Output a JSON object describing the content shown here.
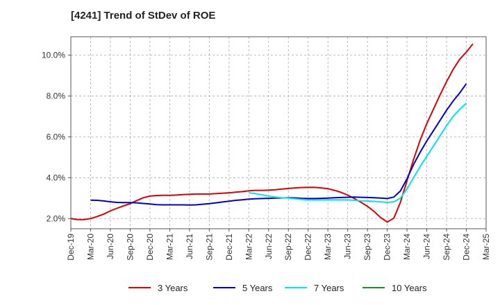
{
  "title": "[4241]  Trend of StDev of ROE",
  "chart_data": {
    "type": "line",
    "title": "[4241]  Trend of StDev of ROE",
    "xlabel": "",
    "ylabel": "",
    "x": [
      "Dec-19",
      "Mar-20",
      "Jun-20",
      "Sep-20",
      "Dec-20",
      "Mar-21",
      "Jun-21",
      "Sep-21",
      "Dec-21",
      "Mar-22",
      "Jun-22",
      "Sep-22",
      "Dec-22",
      "Mar-23",
      "Jun-23",
      "Sep-23",
      "Dec-23",
      "Mar-24",
      "Jun-24",
      "Sep-24",
      "Dec-24",
      "Mar-25"
    ],
    "ylim": [
      1.5,
      10.9
    ],
    "yticks": [
      2.0,
      4.0,
      6.0,
      8.0,
      10.0
    ],
    "ytick_labels": [
      "2.0%",
      "4.0%",
      "6.0%",
      "8.0%",
      "10.0%"
    ],
    "grid": true,
    "legend_position": "bottom",
    "series": [
      {
        "name": "3 Years",
        "color": "#dd0000",
        "points": [
          [
            "Dec-19",
            2.0
          ],
          [
            "Jan-20",
            1.95
          ],
          [
            "Feb-20",
            1.95
          ],
          [
            "Mar-20",
            2.0
          ],
          [
            "Apr-20",
            2.1
          ],
          [
            "May-20",
            2.22
          ],
          [
            "Jun-20",
            2.38
          ],
          [
            "Jul-20",
            2.5
          ],
          [
            "Aug-20",
            2.62
          ],
          [
            "Sep-20",
            2.73
          ],
          [
            "Oct-20",
            2.88
          ],
          [
            "Nov-20",
            3.02
          ],
          [
            "Dec-20",
            3.1
          ],
          [
            "Jan-21",
            3.13
          ],
          [
            "Feb-21",
            3.14
          ],
          [
            "Mar-21",
            3.14
          ],
          [
            "Apr-21",
            3.15
          ],
          [
            "May-21",
            3.17
          ],
          [
            "Jun-21",
            3.19
          ],
          [
            "Jul-21",
            3.2
          ],
          [
            "Aug-21",
            3.2
          ],
          [
            "Sep-21",
            3.2
          ],
          [
            "Oct-21",
            3.22
          ],
          [
            "Nov-21",
            3.24
          ],
          [
            "Dec-21",
            3.26
          ],
          [
            "Jan-22",
            3.29
          ],
          [
            "Feb-22",
            3.32
          ],
          [
            "Mar-22",
            3.36
          ],
          [
            "Apr-22",
            3.38
          ],
          [
            "May-22",
            3.38
          ],
          [
            "Jun-22",
            3.39
          ],
          [
            "Jul-22",
            3.41
          ],
          [
            "Aug-22",
            3.44
          ],
          [
            "Sep-22",
            3.47
          ],
          [
            "Oct-22",
            3.5
          ],
          [
            "Nov-22",
            3.52
          ],
          [
            "Dec-22",
            3.53
          ],
          [
            "Jan-23",
            3.53
          ],
          [
            "Feb-23",
            3.5
          ],
          [
            "Mar-23",
            3.46
          ],
          [
            "Apr-23",
            3.38
          ],
          [
            "May-23",
            3.28
          ],
          [
            "Jun-23",
            3.15
          ],
          [
            "Jul-23",
            2.98
          ],
          [
            "Aug-23",
            2.8
          ],
          [
            "Sep-23",
            2.6
          ],
          [
            "Oct-23",
            2.35
          ],
          [
            "Nov-23",
            2.05
          ],
          [
            "Dec-23",
            1.83
          ],
          [
            "Jan-24",
            2.02
          ],
          [
            "Feb-24",
            2.8
          ],
          [
            "Mar-24",
            3.85
          ],
          [
            "Apr-24",
            4.9
          ],
          [
            "May-24",
            5.85
          ],
          [
            "Jun-24",
            6.65
          ],
          [
            "Jul-24",
            7.35
          ],
          [
            "Aug-24",
            8.05
          ],
          [
            "Sep-24",
            8.7
          ],
          [
            "Oct-24",
            9.3
          ],
          [
            "Nov-24",
            9.8
          ],
          [
            "Dec-24",
            10.15
          ],
          [
            "Jan-25",
            10.55
          ]
        ]
      },
      {
        "name": "5 Years",
        "color": "#0000cc",
        "points": [
          [
            "Mar-20",
            2.9
          ],
          [
            "Apr-20",
            2.89
          ],
          [
            "May-20",
            2.86
          ],
          [
            "Jun-20",
            2.82
          ],
          [
            "Jul-20",
            2.79
          ],
          [
            "Aug-20",
            2.78
          ],
          [
            "Sep-20",
            2.78
          ],
          [
            "Oct-20",
            2.77
          ],
          [
            "Nov-20",
            2.74
          ],
          [
            "Dec-20",
            2.71
          ],
          [
            "Jan-21",
            2.68
          ],
          [
            "Feb-21",
            2.67
          ],
          [
            "Mar-21",
            2.67
          ],
          [
            "Apr-21",
            2.67
          ],
          [
            "May-21",
            2.67
          ],
          [
            "Jun-21",
            2.66
          ],
          [
            "Jul-21",
            2.67
          ],
          [
            "Aug-21",
            2.7
          ],
          [
            "Sep-21",
            2.73
          ],
          [
            "Oct-21",
            2.77
          ],
          [
            "Nov-21",
            2.81
          ],
          [
            "Dec-21",
            2.85
          ],
          [
            "Jan-22",
            2.89
          ],
          [
            "Feb-22",
            2.92
          ],
          [
            "Mar-22",
            2.95
          ],
          [
            "Apr-22",
            2.97
          ],
          [
            "May-22",
            2.98
          ],
          [
            "Jun-22",
            2.99
          ],
          [
            "Jul-22",
            3.0
          ],
          [
            "Aug-22",
            3.01
          ],
          [
            "Sep-22",
            3.02
          ],
          [
            "Oct-22",
            3.01
          ],
          [
            "Nov-22",
            2.99
          ],
          [
            "Dec-22",
            2.98
          ],
          [
            "Jan-23",
            2.98
          ],
          [
            "Feb-23",
            2.99
          ],
          [
            "Mar-23",
            3.0
          ],
          [
            "Apr-23",
            3.02
          ],
          [
            "May-23",
            3.03
          ],
          [
            "Jun-23",
            3.04
          ],
          [
            "Jul-23",
            3.05
          ],
          [
            "Aug-23",
            3.04
          ],
          [
            "Sep-23",
            3.03
          ],
          [
            "Oct-23",
            3.02
          ],
          [
            "Nov-23",
            3.0
          ],
          [
            "Dec-23",
            2.98
          ],
          [
            "Jan-24",
            3.05
          ],
          [
            "Feb-24",
            3.35
          ],
          [
            "Mar-24",
            3.95
          ],
          [
            "Apr-24",
            4.65
          ],
          [
            "May-24",
            5.25
          ],
          [
            "Jun-24",
            5.8
          ],
          [
            "Jul-24",
            6.3
          ],
          [
            "Aug-24",
            6.8
          ],
          [
            "Sep-24",
            7.3
          ],
          [
            "Oct-24",
            7.75
          ],
          [
            "Nov-24",
            8.15
          ],
          [
            "Dec-24",
            8.6
          ]
        ]
      },
      {
        "name": "7 Years",
        "color": "#00e5ee",
        "points": [
          [
            "Mar-22",
            3.26
          ],
          [
            "Apr-22",
            3.22
          ],
          [
            "May-22",
            3.16
          ],
          [
            "Jun-22",
            3.1
          ],
          [
            "Jul-22",
            3.05
          ],
          [
            "Aug-22",
            3.02
          ],
          [
            "Sep-22",
            3.0
          ],
          [
            "Oct-22",
            2.97
          ],
          [
            "Nov-22",
            2.94
          ],
          [
            "Dec-22",
            2.92
          ],
          [
            "Jan-23",
            2.91
          ],
          [
            "Feb-23",
            2.91
          ],
          [
            "Mar-23",
            2.92
          ],
          [
            "Apr-23",
            2.92
          ],
          [
            "May-23",
            2.92
          ],
          [
            "Jun-23",
            2.91
          ],
          [
            "Jul-23",
            2.89
          ],
          [
            "Aug-23",
            2.87
          ],
          [
            "Sep-23",
            2.86
          ],
          [
            "Oct-23",
            2.84
          ],
          [
            "Nov-23",
            2.82
          ],
          [
            "Dec-23",
            2.79
          ],
          [
            "Jan-24",
            2.82
          ],
          [
            "Feb-24",
            3.0
          ],
          [
            "Mar-24",
            3.45
          ],
          [
            "Apr-24",
            4.0
          ],
          [
            "May-24",
            4.55
          ],
          [
            "Jun-24",
            5.05
          ],
          [
            "Jul-24",
            5.55
          ],
          [
            "Aug-24",
            6.05
          ],
          [
            "Sep-24",
            6.55
          ],
          [
            "Oct-24",
            7.0
          ],
          [
            "Nov-24",
            7.35
          ],
          [
            "Dec-24",
            7.65
          ]
        ]
      },
      {
        "name": "10 Years",
        "color": "#228b22",
        "points": []
      }
    ]
  }
}
